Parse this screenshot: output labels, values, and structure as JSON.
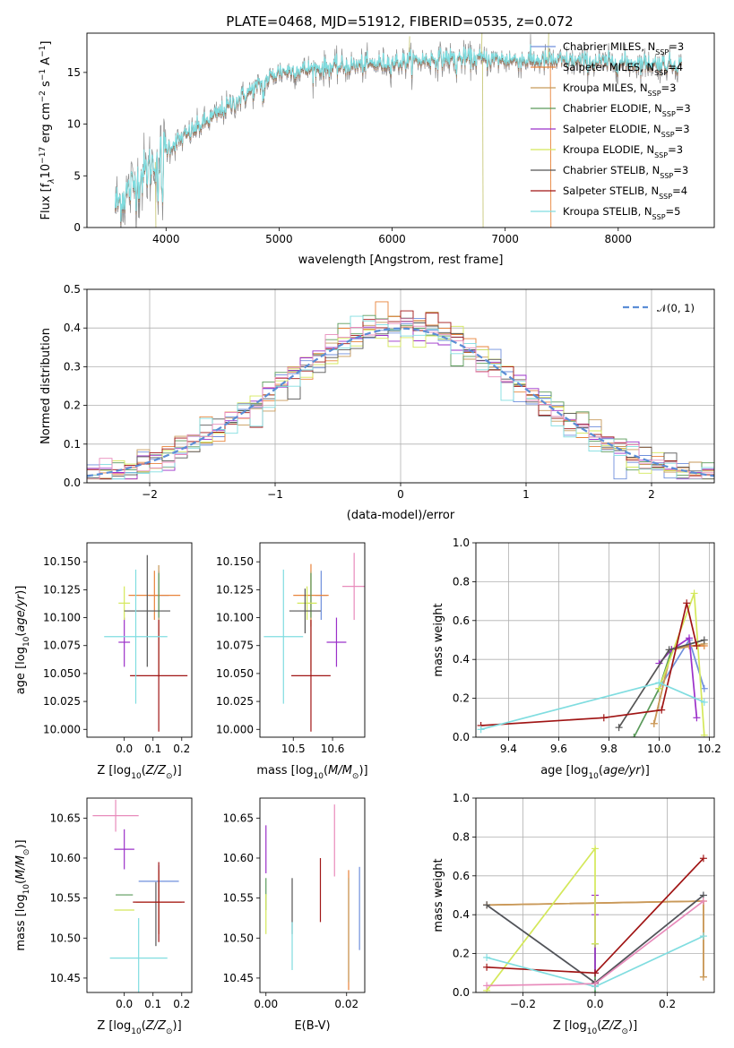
{
  "figure_title": "PLATE=0468, MJD=51912, FIBERID=0535, z=0.072",
  "models": [
    {
      "label": "Chabrier MILES, N",
      "sub": "SSP",
      "eq": "=3",
      "color": "#6f8fdc"
    },
    {
      "label": "Salpeter MILES, N",
      "sub": "SSP",
      "eq": "=4",
      "color": "#e8833a"
    },
    {
      "label": "Kroupa MILES, N",
      "sub": "SSP",
      "eq": "=3",
      "color": "#c79a5a"
    },
    {
      "label": "Chabrier ELODIE, N",
      "sub": "SSP",
      "eq": "=3",
      "color": "#5a9a5a"
    },
    {
      "label": "Salpeter ELODIE, N",
      "sub": "SSP",
      "eq": "=3",
      "color": "#9b30c9"
    },
    {
      "label": "Kroupa ELODIE, N",
      "sub": "SSP",
      "eq": "=3",
      "color": "#d4e85a"
    },
    {
      "label": "Chabrier STELIB, N",
      "sub": "SSP",
      "eq": "=3",
      "color": "#555555"
    },
    {
      "label": "Salpeter STELIB, N",
      "sub": "SSP",
      "eq": "=4",
      "color": "#a01515"
    },
    {
      "label": "Kroupa STELIB, N",
      "sub": "SSP",
      "eq": "=5",
      "color": "#80dde0"
    }
  ],
  "chart_data": [
    {
      "id": "spectrum",
      "type": "line",
      "title": "PLATE=0468, MJD=51912, FIBERID=0535, z=0.072",
      "xlabel": "wavelength [Angstrom, rest frame]",
      "ylabel_parts": [
        "Flux [f",
        "λ",
        "10",
        "−17",
        " erg cm",
        "−2",
        " s",
        "−1",
        " A",
        "−1",
        "]"
      ],
      "xlim": [
        3300,
        8850
      ],
      "ylim": [
        0,
        18.8
      ],
      "xticks": [
        4000,
        5000,
        6000,
        7000,
        8000
      ],
      "yticks": [
        0,
        5,
        10,
        15
      ],
      "series_data": "the flux spectrum rises from ~1-9 at 3550 A to ~15-17 at 5000-8500 A; drawn procedurally",
      "legend": "upper right"
    },
    {
      "id": "residuals",
      "type": "line",
      "xlabel": "(data-model)/error",
      "ylabel": "Normed distribution",
      "xlim": [
        -2.5,
        2.5
      ],
      "ylim": [
        0,
        0.5
      ],
      "xticks": [
        -2,
        -1,
        0,
        1,
        2
      ],
      "yticks": [
        0.0,
        0.1,
        0.2,
        0.3,
        0.4,
        0.5
      ],
      "grid": true,
      "legend_label": "𝒩(0, 1)",
      "legend": "upper right",
      "bin_width": 0.1
    },
    {
      "id": "age_vs_Z",
      "type": "scatter",
      "xlabel": "Z [log10(Z/Z⊙)]",
      "ylabel": "age  [log10(age/yr)]",
      "xlim": [
        -0.13,
        0.235
      ],
      "ylim": [
        9.993,
        10.167
      ],
      "xticks": [
        0.0,
        0.1,
        0.2
      ],
      "yticks": [
        10.0,
        10.025,
        10.05,
        10.075,
        10.1,
        10.125,
        10.15
      ],
      "points": [
        {
          "m": 0,
          "x": 0.12,
          "y": 10.12,
          "ex": 0.035,
          "ey": 0.022
        },
        {
          "m": 1,
          "x": 0.105,
          "y": 10.12,
          "ex": 0.09,
          "ey": 0.022
        },
        {
          "m": 2,
          "x": 0.12,
          "y": 10.097,
          "ex": 0.0,
          "ey": 0.05
        },
        {
          "m": 3,
          "x": 0.12,
          "y": 10.12,
          "ex": 0.0,
          "ey": 0.02
        },
        {
          "m": 4,
          "x": 0.0,
          "y": 10.078,
          "ex": 0.02,
          "ey": 0.022
        },
        {
          "m": 5,
          "x": 0.0,
          "y": 10.113,
          "ex": 0.02,
          "ey": 0.015
        },
        {
          "m": 6,
          "x": 0.08,
          "y": 10.106,
          "ex": 0.08,
          "ey": 0.05
        },
        {
          "m": 7,
          "x": 0.12,
          "y": 10.048,
          "ex": 0.1,
          "ey": 0.05
        },
        {
          "m": 8,
          "x": 0.04,
          "y": 10.083,
          "ex": 0.11,
          "ey": 0.06
        }
      ]
    },
    {
      "id": "age_vs_mass",
      "type": "scatter",
      "xlabel": "mass [log10(M/M⊙)]",
      "ylabel": "",
      "xlim": [
        10.415,
        10.682
      ],
      "ylim": [
        9.993,
        10.167
      ],
      "xticks": [
        10.5,
        10.6
      ],
      "yticks": [
        10.0,
        10.025,
        10.05,
        10.075,
        10.1,
        10.125,
        10.15
      ],
      "points": [
        {
          "m": 0,
          "x": 10.571,
          "y": 10.12,
          "ex": 0.015,
          "ey": 0.022
        },
        {
          "m": 1,
          "x": 10.545,
          "y": 10.12,
          "ex": 0.045,
          "ey": 0.028
        },
        {
          "m": 2,
          "x": 10.545,
          "y": 10.097,
          "ex": 0.0,
          "ey": 0.045
        },
        {
          "m": 3,
          "x": 10.545,
          "y": 10.12,
          "ex": 0.0,
          "ey": 0.02
        },
        {
          "m": 4,
          "x": 10.61,
          "y": 10.078,
          "ex": 0.025,
          "ey": 0.022
        },
        {
          "m": 5,
          "x": 10.535,
          "y": 10.113,
          "ex": 0.025,
          "ey": 0.015
        },
        {
          "m": 6,
          "x": 10.53,
          "y": 10.106,
          "ex": 0.04,
          "ey": 0.02
        },
        {
          "m": 7,
          "x": 10.545,
          "y": 10.048,
          "ex": 0.05,
          "ey": 0.05
        },
        {
          "m": 8,
          "x": 10.475,
          "y": 10.083,
          "ex": 0.05,
          "ey": 0.06
        },
        {
          "m": 7,
          "x": 10.655,
          "y": 10.13,
          "ex": 0.0,
          "ey": 0.0
        },
        {
          "m": 8,
          "x": 10.655,
          "y": 10.128,
          "ex": 0.03,
          "ey": 0.03
        }
      ]
    },
    {
      "id": "weight_vs_age",
      "type": "line",
      "xlabel": "age  [log10(age/yr)]",
      "ylabel": "mass weight",
      "xlim": [
        9.27,
        10.22
      ],
      "ylim": [
        0,
        1.0
      ],
      "xticks": [
        9.4,
        9.6,
        9.8,
        10.0,
        10.2
      ],
      "yticks": [
        0.0,
        0.2,
        0.4,
        0.6,
        0.8,
        1.0
      ],
      "grid": true,
      "series": [
        {
          "m": 0,
          "x": [
            10.0,
            10.12,
            10.18
          ],
          "y": [
            0.25,
            0.5,
            0.25
          ]
        },
        {
          "m": 1,
          "x": [
            9.98,
            10.05,
            10.12,
            10.18
          ],
          "y": [
            0.07,
            0.45,
            0.47,
            0.47
          ]
        },
        {
          "m": 2,
          "x": [
            9.98,
            10.05,
            10.18
          ],
          "y": [
            0.07,
            0.45,
            0.48
          ]
        },
        {
          "m": 3,
          "x": [
            9.9,
            10.0,
            10.05
          ],
          "y": [
            0.0,
            0.25,
            0.45
          ]
        },
        {
          "m": 4,
          "x": [
            10.0,
            10.05,
            10.12,
            10.15
          ],
          "y": [
            0.38,
            0.45,
            0.51,
            0.1
          ]
        },
        {
          "m": 5,
          "x": [
            10.0,
            10.14,
            10.18
          ],
          "y": [
            0.25,
            0.74,
            0.01
          ]
        },
        {
          "m": 6,
          "x": [
            9.84,
            10.04,
            10.18
          ],
          "y": [
            0.05,
            0.45,
            0.5
          ]
        },
        {
          "m": 7,
          "x": [
            9.29,
            9.78,
            10.01,
            10.11,
            10.15
          ],
          "y": [
            0.06,
            0.1,
            0.14,
            0.69,
            0.47
          ]
        },
        {
          "m": 8,
          "x": [
            9.29,
            10.0,
            10.18
          ],
          "y": [
            0.04,
            0.28,
            0.18
          ]
        }
      ]
    },
    {
      "id": "mass_vs_Z",
      "type": "scatter",
      "xlabel": "Z [log10(Z/Z⊙)]",
      "ylabel": "mass [log10(M/M⊙)]",
      "xlim": [
        -0.13,
        0.235
      ],
      "ylim": [
        10.432,
        10.675
      ],
      "xticks": [
        0.0,
        0.1,
        0.2
      ],
      "yticks": [
        10.45,
        10.5,
        10.55,
        10.6,
        10.65
      ],
      "points": [
        {
          "m": 0,
          "x": 0.12,
          "y": 10.571,
          "ex": 0.07,
          "ey": 0.02
        },
        {
          "m": 1,
          "x": 0.12,
          "y": 10.545,
          "ex": 0.08,
          "ey": 0.04
        },
        {
          "m": 2,
          "x": 0.12,
          "y": 10.545,
          "ex": 0.0,
          "ey": 0.04
        },
        {
          "m": 3,
          "x": 0.0,
          "y": 10.554,
          "ex": 0.03,
          "ey": 0.0
        },
        {
          "m": 4,
          "x": 0.0,
          "y": 10.611,
          "ex": 0.035,
          "ey": 0.025
        },
        {
          "m": 5,
          "x": 0.0,
          "y": 10.535,
          "ex": 0.035,
          "ey": 0.0
        },
        {
          "m": 6,
          "x": 0.11,
          "y": 10.53,
          "ex": 0.0,
          "ey": 0.04
        },
        {
          "m": 7,
          "x": 0.12,
          "y": 10.545,
          "ex": 0.09,
          "ey": 0.05
        },
        {
          "m": 8,
          "x": 0.05,
          "y": 10.475,
          "ex": 0.1,
          "ey": 0.05
        },
        {
          "m": 7,
          "x": -0.02,
          "y": 10.653,
          "ex": 0.0,
          "ey": 0.0
        },
        {
          "m": 8,
          "x": -0.03,
          "y": 10.653,
          "ex": 0.08,
          "ey": 0.02
        }
      ]
    },
    {
      "id": "mass_vs_ebv",
      "type": "scatter",
      "xlabel": "E(B-V)",
      "ylabel": "",
      "xlim": [
        -0.0015,
        0.0245
      ],
      "ylim": [
        10.432,
        10.675
      ],
      "xticks": [
        0.0,
        0.02
      ],
      "yticks": [
        10.45,
        10.5,
        10.55,
        10.6,
        10.65
      ],
      "points": [
        {
          "m": 0,
          "x": 0.0232,
          "y": 10.537,
          "ey": 0.052
        },
        {
          "m": 1,
          "x": 0.0205,
          "y": 10.51,
          "ey": 0.075
        },
        {
          "m": 2,
          "x": 0.0205,
          "y": 10.51,
          "ey": 0.065
        },
        {
          "m": 3,
          "x": 0.0,
          "y": 10.555,
          "ey": 0.02
        },
        {
          "m": 4,
          "x": 0.0,
          "y": 10.611,
          "ey": 0.03
        },
        {
          "m": 5,
          "x": 0.0,
          "y": 10.53,
          "ey": 0.025
        },
        {
          "m": 6,
          "x": 0.0065,
          "y": 10.54,
          "ey": 0.035
        },
        {
          "m": 7,
          "x": 0.0135,
          "y": 10.56,
          "ey": 0.04
        },
        {
          "m": 8,
          "x": 0.0065,
          "y": 10.49,
          "ey": 0.03
        },
        {
          "m": 7,
          "x": 0.017,
          "y": 10.622,
          "ey": 0.045
        }
      ]
    },
    {
      "id": "weight_vs_Z",
      "type": "line",
      "xlabel": "Z [log10(Z/Z⊙)]",
      "ylabel": "mass weight",
      "xlim": [
        -0.33,
        0.33
      ],
      "ylim": [
        0,
        1.0
      ],
      "xticks": [
        -0.2,
        0.0,
        0.2
      ],
      "yticks": [
        0.0,
        0.2,
        0.4,
        0.6,
        0.8,
        1.0
      ],
      "grid": true,
      "series": [
        {
          "m": 0,
          "x": [
            -0.3,
            0.0,
            0.3
          ],
          "y": [
            0.45,
            0.05,
            0.5
          ]
        },
        {
          "m": 1,
          "x": [
            -0.3,
            0.3,
            0.3
          ],
          "y": [
            0.45,
            0.47,
            0.08
          ]
        },
        {
          "m": 2,
          "x": [
            -0.3,
            0.3,
            0.3
          ],
          "y": [
            0.45,
            0.47,
            0.08
          ]
        },
        {
          "m": 3,
          "x": [
            0.0,
            0.0
          ],
          "y": [
            0.0,
            0.25
          ]
        },
        {
          "m": 4,
          "x": [
            0.0,
            0.0,
            0.0
          ],
          "y": [
            0.1,
            0.5,
            0.4
          ]
        },
        {
          "m": 5,
          "x": [
            -0.3,
            0.0,
            0.0
          ],
          "y": [
            0.01,
            0.74,
            0.25
          ]
        },
        {
          "m": 6,
          "x": [
            -0.3,
            0.0,
            0.3
          ],
          "y": [
            0.45,
            0.05,
            0.5
          ]
        },
        {
          "m": 7,
          "x": [
            -0.3,
            0.0,
            0.3
          ],
          "y": [
            0.13,
            0.1,
            0.69
          ]
        },
        {
          "m": 8,
          "x": [
            -0.3,
            0.0,
            0.3
          ],
          "y": [
            0.18,
            0.03,
            0.29
          ]
        },
        {
          "m": 8,
          "x": [
            -0.3,
            0.0,
            0.3
          ],
          "y": [
            0.035,
            0.045,
            0.47
          ],
          "altcolor": "#e88bbb"
        }
      ]
    }
  ]
}
